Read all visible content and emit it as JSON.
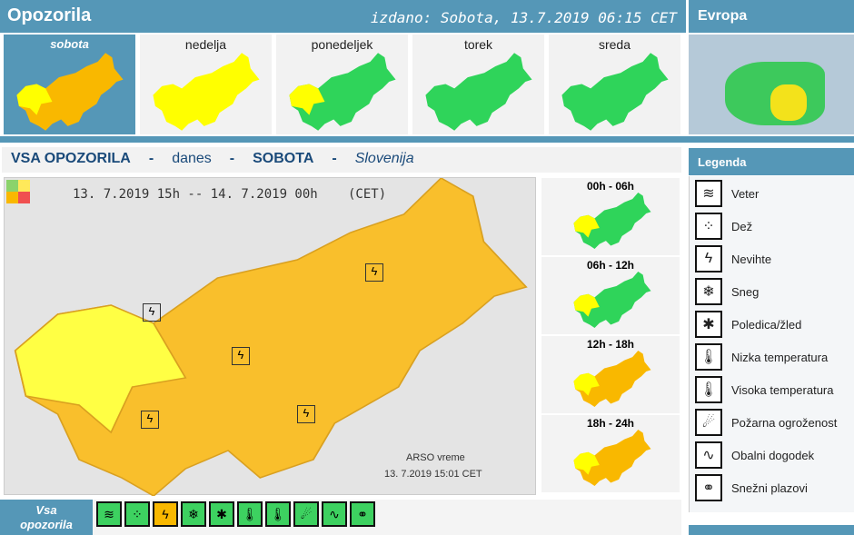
{
  "header": {
    "title": "Opozorila",
    "issued": "izdano: Sobota, 13.7.2019 06:15 CET",
    "europe": "Evropa"
  },
  "days": [
    {
      "label": "sobota",
      "color": "#f9b800",
      "selected": true
    },
    {
      "label": "nedelja",
      "color": "#ffff00"
    },
    {
      "label": "ponedeljek",
      "color": "#2fd45a"
    },
    {
      "label": "torek",
      "color": "#2fd45a"
    },
    {
      "label": "sreda",
      "color": "#2fd45a"
    }
  ],
  "title_row": {
    "all": "VSA OPOZORILA",
    "sep": "-",
    "today": "danes",
    "day": "SOBOTA",
    "region": "Slovenija"
  },
  "main_map": {
    "period": "13. 7.2019  15h  --  14. 7.2019  00h",
    "tz": "(CET)",
    "credit": "ARSO vreme",
    "timestamp": "13. 7.2019  15:01 CET"
  },
  "periods": [
    {
      "label": "00h - 06h",
      "color": "#2fd45a"
    },
    {
      "label": "06h - 12h",
      "color": "#2fd45a"
    },
    {
      "label": "12h - 18h",
      "color": "#f9b800"
    },
    {
      "label": "18h - 24h",
      "color": "#f9b800"
    }
  ],
  "legend": {
    "title": "Legenda",
    "items": [
      {
        "label": "Veter",
        "icon": "wind-icon"
      },
      {
        "label": "Dež",
        "icon": "rain-icon"
      },
      {
        "label": "Nevihte",
        "icon": "thunderstorm-icon"
      },
      {
        "label": "Sneg",
        "icon": "snow-icon"
      },
      {
        "label": "Poledica/žled",
        "icon": "ice-icon"
      },
      {
        "label": "Nizka temperatura",
        "icon": "low-temperature-icon"
      },
      {
        "label": "Visoka temperatura",
        "icon": "high-temperature-icon"
      },
      {
        "label": "Požarna ogroženost",
        "icon": "fire-icon"
      },
      {
        "label": "Obalni dogodek",
        "icon": "coastal-icon"
      },
      {
        "label": "Snežni plazovi",
        "icon": "avalanche-icon"
      }
    ]
  },
  "bottom": {
    "all_line1": "Vsa",
    "all_line2": "opozorila"
  },
  "colors": {
    "header": "#5597b7",
    "orange": "#f9b800",
    "yellow": "#ffff00",
    "green": "#2fd45a"
  }
}
